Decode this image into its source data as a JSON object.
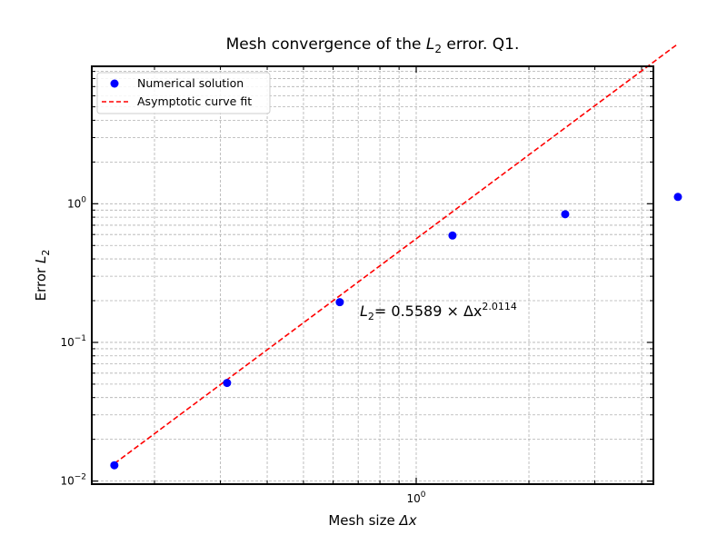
{
  "chart_data": {
    "type": "scatter",
    "title_parts": [
      "Mesh convergence of the ",
      "L",
      "2",
      " error. Q1."
    ],
    "xlabel_parts": [
      "Mesh size ",
      "Δx"
    ],
    "ylabel_parts": [
      "Error ",
      "L",
      "2"
    ],
    "x_scale": "log",
    "y_scale": "log",
    "xlim": [
      0.136,
      4.3
    ],
    "ylim": [
      0.0095,
      9.8
    ],
    "grid": true,
    "legend_position": "upper-left",
    "x_tick_labels": [
      {
        "value": 1,
        "base": "10",
        "exp": "0"
      }
    ],
    "y_tick_labels": [
      {
        "value": 0.01,
        "base": "10",
        "exp": "−2"
      },
      {
        "value": 0.1,
        "base": "10",
        "exp": "−1"
      },
      {
        "value": 1,
        "base": "10",
        "exp": "0"
      }
    ],
    "series": [
      {
        "name": "Numerical solution",
        "kind": "scatter",
        "color": "#0000ff",
        "x": [
          0.15625,
          0.3125,
          0.625,
          1.25,
          2.5,
          5.0
        ],
        "y": [
          0.013,
          0.051,
          0.195,
          0.59,
          0.84,
          1.12
        ]
      },
      {
        "name": "Asymptotic curve fit",
        "kind": "line",
        "style": "dashed",
        "color": "#ff0000",
        "coef": 0.5589,
        "exponent": 2.0114,
        "x_range": [
          0.15625,
          5.0
        ]
      }
    ],
    "annotation": {
      "lhs": "L",
      "lhs_sub": "2",
      "text": "= 0.5589 × Δx",
      "exp": "2.0114",
      "x": 1.0,
      "y": 0.155
    }
  }
}
